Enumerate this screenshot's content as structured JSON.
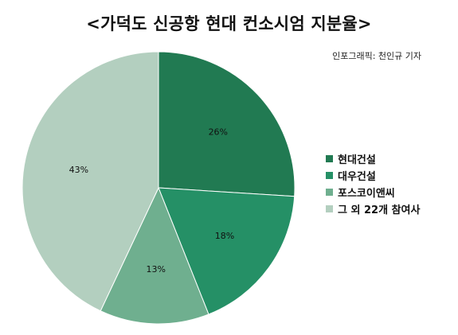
{
  "chart_data": {
    "type": "pie",
    "title": "<가덕도 신공항 현대 컨소시엄 지분율>",
    "credit": "인포그래픽: 천인규 기자",
    "categories": [
      "현대건설",
      "대우건설",
      "포스코이앤씨",
      "그 외 22개 참여사"
    ],
    "values": [
      26,
      18,
      13,
      43
    ],
    "labels": [
      "26%",
      "18%",
      "13%",
      "43%"
    ],
    "unit": "%",
    "colors": [
      "#217a52",
      "#259066",
      "#6faf8f",
      "#b3cfbf"
    ],
    "start_angle_deg": 0,
    "direction": "clockwise",
    "legend_placement": "right"
  }
}
